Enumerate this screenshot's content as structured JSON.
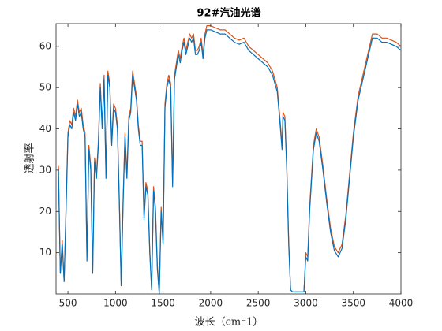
{
  "chart_data": {
    "type": "line",
    "title": "92#汽油光谱",
    "x_label": "波长（cm⁻1）",
    "y_label": "透射率",
    "x": [
      400,
      420,
      440,
      460,
      480,
      500,
      520,
      540,
      560,
      580,
      600,
      620,
      640,
      660,
      680,
      700,
      720,
      740,
      760,
      780,
      800,
      820,
      840,
      860,
      880,
      900,
      920,
      940,
      960,
      980,
      1000,
      1020,
      1040,
      1060,
      1080,
      1100,
      1120,
      1140,
      1160,
      1180,
      1200,
      1220,
      1240,
      1260,
      1280,
      1300,
      1320,
      1340,
      1360,
      1380,
      1400,
      1420,
      1440,
      1460,
      1480,
      1500,
      1520,
      1540,
      1560,
      1580,
      1600,
      1620,
      1640,
      1660,
      1680,
      1700,
      1720,
      1740,
      1760,
      1780,
      1800,
      1820,
      1840,
      1860,
      1880,
      1900,
      1920,
      1940,
      1960,
      2000,
      2050,
      2100,
      2150,
      2200,
      2250,
      2300,
      2350,
      2400,
      2450,
      2500,
      2550,
      2600,
      2650,
      2700,
      2730,
      2750,
      2760,
      2780,
      2800,
      2820,
      2840,
      2860,
      2900,
      2950,
      2980,
      3000,
      3020,
      3040,
      3080,
      3110,
      3140,
      3180,
      3220,
      3260,
      3300,
      3340,
      3380,
      3420,
      3460,
      3500,
      3550,
      3600,
      3650,
      3700,
      3750,
      3800,
      3850,
      3900,
      3950,
      4000
    ],
    "series": [
      {
        "color": "#d95319",
        "values": [
          31,
          5,
          13,
          3,
          21,
          39,
          42,
          41,
          45,
          43,
          47,
          44,
          45,
          41,
          39,
          9,
          36,
          31,
          5,
          33,
          29,
          37,
          51,
          41,
          53,
          29,
          54,
          51,
          37,
          46,
          45,
          41,
          23,
          2,
          23,
          39,
          29,
          43,
          45,
          54,
          51,
          48,
          41,
          37,
          37,
          19,
          27,
          25,
          11,
          1,
          26,
          21,
          7,
          0,
          21,
          13,
          46,
          51,
          53,
          51,
          27,
          53,
          56,
          59,
          57,
          60,
          62,
          59,
          61,
          63,
          62,
          63,
          59,
          59,
          60,
          62,
          58,
          63,
          65,
          65,
          64.5,
          64,
          64,
          63,
          62,
          61.5,
          62,
          60,
          59,
          58,
          57,
          56,
          54,
          50,
          42,
          36,
          44,
          43,
          31,
          13,
          1,
          0.5,
          0.5,
          0.5,
          0.5,
          10,
          9,
          21,
          36,
          40,
          38,
          31,
          23,
          16,
          11.5,
          10,
          12,
          19,
          29,
          39,
          48,
          53,
          58,
          63,
          63,
          62,
          62,
          61.5,
          61,
          60
        ]
      },
      {
        "color": "#0072bd",
        "values": [
          30,
          5,
          12,
          3,
          20,
          38,
          41,
          40,
          44,
          42,
          46,
          43,
          44,
          40,
          38,
          8,
          35,
          30,
          5,
          32,
          28,
          36,
          50,
          40,
          52,
          28,
          53,
          50,
          36,
          45,
          44,
          40,
          22,
          2,
          22,
          38,
          28,
          42,
          44,
          53,
          50,
          47,
          40,
          36,
          36,
          18,
          26,
          24,
          10,
          1,
          25,
          20,
          6,
          0,
          20,
          12,
          45,
          50,
          52,
          50,
          26,
          52,
          55,
          58,
          56,
          59,
          61,
          58,
          60,
          62,
          61,
          62,
          58,
          58,
          59,
          61,
          57,
          62,
          64,
          64,
          63.5,
          63,
          63,
          62,
          61,
          60.5,
          61,
          59,
          58,
          57,
          56,
          55,
          53,
          49,
          41,
          35,
          43,
          42,
          30,
          12,
          1,
          0.5,
          0.5,
          0.5,
          0.5,
          9,
          8,
          20,
          35,
          39,
          37,
          30,
          22,
          15,
          10.5,
          9,
          11,
          18,
          28,
          38,
          47,
          52,
          57,
          62,
          62,
          61,
          61,
          60.5,
          60,
          59
        ]
      }
    ],
    "xlim": [
      375,
      4000
    ],
    "ylim": [
      0,
      65.5
    ],
    "xticks": [
      500,
      1000,
      1500,
      2000,
      2500,
      3000,
      3500,
      4000
    ],
    "yticks": [
      10,
      20,
      30,
      40,
      50,
      60
    ]
  }
}
